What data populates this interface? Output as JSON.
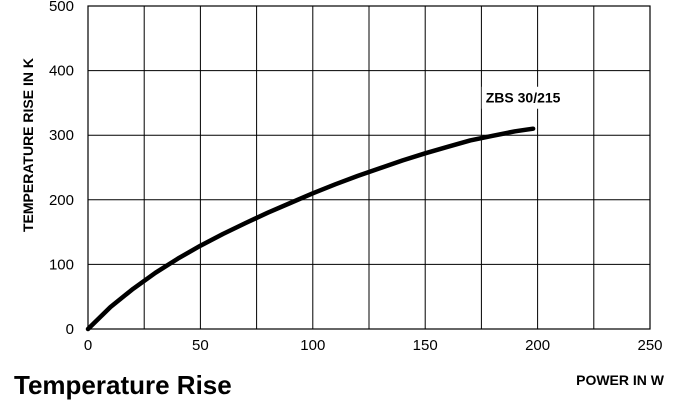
{
  "caption": "Temperature Rise",
  "chart_data": {
    "type": "line",
    "xlabel": "POWER IN W",
    "ylabel": "TEMPERATURE RISE IN K",
    "xlim": [
      0,
      250
    ],
    "ylim": [
      0,
      500
    ],
    "x_ticks": [
      0,
      50,
      100,
      150,
      200,
      250
    ],
    "y_ticks": [
      0,
      100,
      200,
      300,
      400,
      500
    ],
    "grid": true,
    "series": [
      {
        "name": "ZBS 30/215",
        "color": "#000000",
        "x": [
          0,
          10,
          20,
          30,
          40,
          50,
          60,
          70,
          80,
          90,
          100,
          110,
          120,
          130,
          140,
          150,
          160,
          170,
          180,
          190,
          198
        ],
        "y": [
          0,
          34,
          62,
          87,
          109,
          129,
          147,
          164,
          180,
          195,
          210,
          224,
          237,
          249,
          261,
          272,
          282,
          292,
          299,
          306,
          310
        ]
      }
    ]
  }
}
